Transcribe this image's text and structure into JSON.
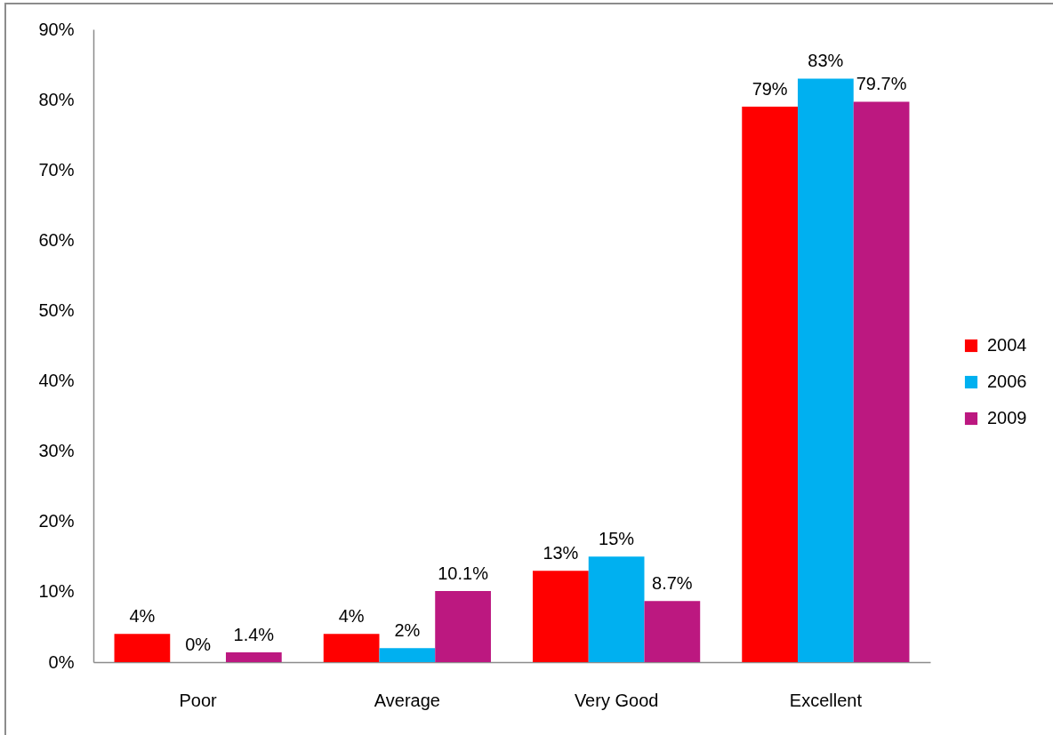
{
  "chart_data": {
    "type": "bar",
    "categories": [
      "Poor",
      "Average",
      "Very Good",
      "Excellent"
    ],
    "series": [
      {
        "name": "2004",
        "color": "#ff0000",
        "values": [
          4,
          4,
          13,
          79
        ],
        "value_labels": [
          "4%",
          "4%",
          "13%",
          "79%"
        ]
      },
      {
        "name": "2006",
        "color": "#00b0f0",
        "values": [
          0,
          2,
          15,
          83
        ],
        "value_labels": [
          "0%",
          "2%",
          "15%",
          "83%"
        ]
      },
      {
        "name": "2009",
        "color": "#bc1880",
        "values": [
          1.4,
          10.1,
          8.7,
          79.7
        ],
        "value_labels": [
          "1.4%",
          "10.1%",
          "8.7%",
          "79.7%"
        ]
      }
    ],
    "ylim": [
      0,
      90
    ],
    "yticks": [
      {
        "value": 0,
        "label": "0%"
      },
      {
        "value": 10,
        "label": "10%"
      },
      {
        "value": 20,
        "label": "20%"
      },
      {
        "value": 30,
        "label": "30%"
      },
      {
        "value": 40,
        "label": "40%"
      },
      {
        "value": 50,
        "label": "50%"
      },
      {
        "value": 60,
        "label": "60%"
      },
      {
        "value": 70,
        "label": "70%"
      },
      {
        "value": 80,
        "label": "80%"
      },
      {
        "value": 90,
        "label": "90%"
      }
    ],
    "grid": false,
    "legend": "right"
  }
}
